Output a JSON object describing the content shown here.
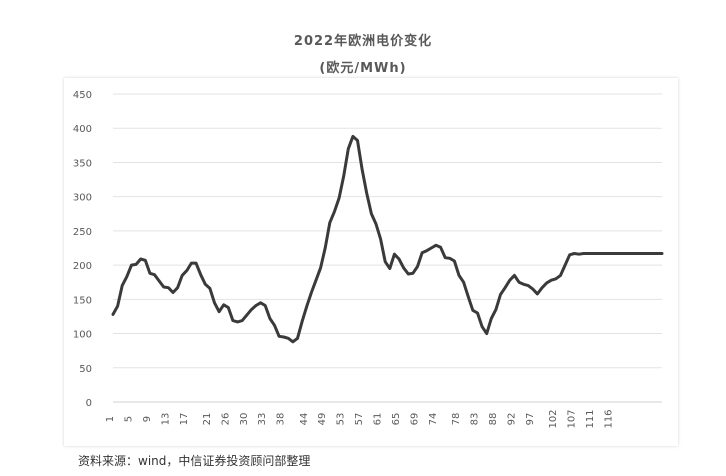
{
  "chart_data": {
    "type": "line",
    "title": "2022年欧洲电价变化",
    "subtitle": "(欧元/MWh)",
    "ylim": [
      0,
      450
    ],
    "yticks": [
      0,
      50,
      100,
      150,
      200,
      250,
      300,
      350,
      400,
      450
    ],
    "xlim": [
      1,
      120
    ],
    "xticks": [
      1,
      5,
      9,
      13,
      17,
      22,
      26,
      30,
      34,
      38,
      43,
      47,
      51,
      55,
      59,
      63,
      67,
      71,
      76,
      80,
      84,
      88,
      92,
      97,
      101,
      105,
      109,
      113,
      117
    ],
    "xtick_labels": [
      "1",
      "5",
      "9",
      "13",
      "17",
      "21",
      "26",
      "30",
      "33",
      "38",
      "44",
      "49",
      "53",
      "57",
      "61",
      "65",
      "69",
      "74",
      "78",
      "83",
      "88",
      "92",
      "97",
      "102",
      "107",
      "111",
      "116",
      "",
      ""
    ],
    "grid": true,
    "line_color": "#3a3a3a",
    "series": [
      {
        "name": "",
        "x": [
          1,
          2,
          3,
          4,
          5,
          6,
          7,
          8,
          9,
          10,
          11,
          12,
          13,
          14,
          15,
          16,
          17,
          18,
          19,
          20,
          21,
          22,
          23,
          24,
          25,
          26,
          27,
          28,
          29,
          30,
          31,
          32,
          33,
          34,
          35,
          36,
          37,
          38,
          39,
          40,
          41,
          42,
          43,
          44,
          45,
          46,
          47,
          48,
          49,
          50,
          51,
          52,
          53,
          54,
          55,
          56,
          57,
          58,
          59,
          60,
          61,
          62,
          63,
          64,
          65,
          66,
          67,
          68,
          69,
          70,
          71,
          72,
          73,
          74,
          75,
          76,
          77,
          78,
          79,
          80,
          81,
          82,
          83,
          84,
          85,
          86,
          87,
          88,
          89,
          90,
          91,
          92,
          93,
          94,
          95,
          96,
          97,
          98,
          99,
          100,
          101,
          102,
          103,
          104,
          105,
          106,
          107,
          108,
          109,
          110,
          111,
          112,
          113,
          114,
          115,
          116,
          117,
          118,
          119,
          120
        ],
        "values": [
          128,
          140,
          170,
          183,
          200,
          201,
          209,
          207,
          188,
          186,
          177,
          168,
          167,
          160,
          167,
          185,
          192,
          203,
          203,
          186,
          172,
          166,
          145,
          132,
          142,
          138,
          119,
          117,
          119,
          127,
          135,
          141,
          145,
          141,
          122,
          112,
          96,
          95,
          93,
          88,
          93,
          118,
          140,
          160,
          178,
          196,
          225,
          262,
          278,
          298,
          330,
          370,
          388,
          382,
          340,
          305,
          275,
          260,
          238,
          205,
          195,
          216,
          209,
          196,
          187,
          188,
          198,
          218,
          221,
          225,
          229,
          226,
          211,
          210,
          206,
          185,
          175,
          154,
          134,
          130,
          110,
          100,
          122,
          135,
          157,
          167,
          178,
          185,
          175,
          172,
          170,
          165,
          158,
          167,
          174,
          178,
          180,
          185,
          200,
          215,
          217,
          216,
          217,
          217,
          217,
          217,
          217,
          217,
          217,
          217,
          217,
          217,
          217,
          217,
          217,
          217,
          217,
          217,
          217,
          217
        ]
      }
    ]
  },
  "source": "资料来源：wind，中信证券投资顾问部整理"
}
